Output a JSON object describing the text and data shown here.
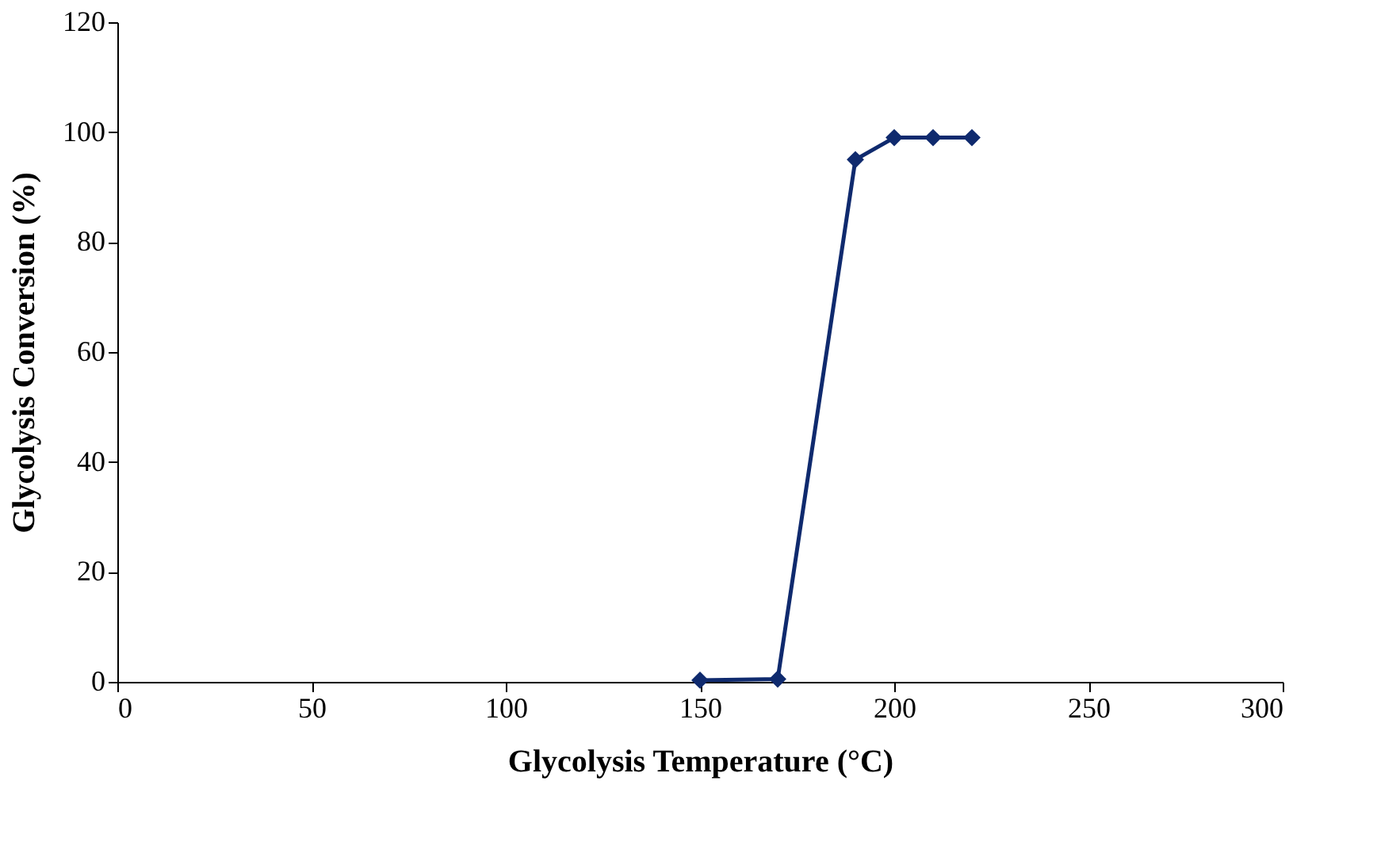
{
  "chart_data": {
    "type": "line",
    "xlabel": "Glycolysis Temperature (°C)",
    "ylabel": "Glycolysis Conversion (%)",
    "x": [
      150,
      170,
      190,
      200,
      210,
      220
    ],
    "series": [
      {
        "color": "#0f2a6e",
        "values": [
          0.3,
          0.5,
          95,
          99,
          99,
          99
        ]
      }
    ],
    "xlim": [
      0,
      300
    ],
    "xticks": [
      0,
      50,
      100,
      150,
      200,
      250,
      300
    ],
    "ylim": [
      0,
      120
    ],
    "yticks": [
      0,
      20,
      40,
      60,
      80,
      100,
      120
    ],
    "grid": false,
    "marker": "diamond",
    "line_style": "solid"
  }
}
